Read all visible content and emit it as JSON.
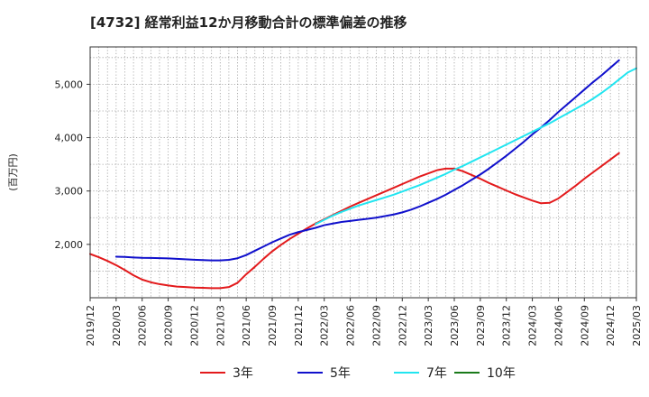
{
  "chart_data": {
    "type": "line",
    "title": "[4732]  経常利益12か月移動合計の標準偏差の推移",
    "ylabel": "(百万円)",
    "xlabel": "",
    "ylim": [
      1000,
      5700
    ],
    "yticks": [
      2000,
      3000,
      4000,
      5000
    ],
    "ytick_labels": [
      "2,000",
      "3,000",
      "4,000",
      "5,000"
    ],
    "xticks": [
      "2019/12",
      "2020/03",
      "2020/06",
      "2020/09",
      "2020/12",
      "2021/03",
      "2021/06",
      "2021/09",
      "2021/12",
      "2022/03",
      "2022/06",
      "2022/09",
      "2022/12",
      "2023/03",
      "2023/06",
      "2023/09",
      "2023/12",
      "2024/03",
      "2024/06",
      "2024/09",
      "2024/12",
      "2025/03"
    ],
    "grid": true,
    "legend_position": "bottom",
    "series": [
      {
        "name": "3年",
        "color": "#e31a1c",
        "points": [
          [
            "2019/12",
            1820
          ],
          [
            "2020/01",
            1760
          ],
          [
            "2020/02",
            1690
          ],
          [
            "2020/03",
            1610
          ],
          [
            "2020/04",
            1520
          ],
          [
            "2020/05",
            1420
          ],
          [
            "2020/06",
            1340
          ],
          [
            "2020/07",
            1290
          ],
          [
            "2020/08",
            1255
          ],
          [
            "2020/09",
            1230
          ],
          [
            "2020/10",
            1210
          ],
          [
            "2020/11",
            1200
          ],
          [
            "2020/12",
            1190
          ],
          [
            "2021/01",
            1185
          ],
          [
            "2021/02",
            1180
          ],
          [
            "2021/03",
            1180
          ],
          [
            "2021/04",
            1200
          ],
          [
            "2021/05",
            1280
          ],
          [
            "2021/06",
            1440
          ],
          [
            "2021/07",
            1580
          ],
          [
            "2021/08",
            1730
          ],
          [
            "2021/09",
            1870
          ],
          [
            "2021/10",
            1990
          ],
          [
            "2021/11",
            2100
          ],
          [
            "2021/12",
            2200
          ],
          [
            "2022/01",
            2300
          ],
          [
            "2022/02",
            2390
          ],
          [
            "2022/03",
            2470
          ],
          [
            "2022/04",
            2550
          ],
          [
            "2022/05",
            2630
          ],
          [
            "2022/06",
            2710
          ],
          [
            "2022/07",
            2780
          ],
          [
            "2022/08",
            2850
          ],
          [
            "2022/09",
            2920
          ],
          [
            "2022/10",
            2990
          ],
          [
            "2022/11",
            3060
          ],
          [
            "2022/12",
            3130
          ],
          [
            "2023/01",
            3200
          ],
          [
            "2023/02",
            3270
          ],
          [
            "2023/03",
            3330
          ],
          [
            "2023/04",
            3390
          ],
          [
            "2023/05",
            3420
          ],
          [
            "2023/06",
            3420
          ],
          [
            "2023/07",
            3370
          ],
          [
            "2023/08",
            3300
          ],
          [
            "2023/09",
            3230
          ],
          [
            "2023/10",
            3150
          ],
          [
            "2023/11",
            3080
          ],
          [
            "2023/12",
            3010
          ],
          [
            "2024/01",
            2940
          ],
          [
            "2024/02",
            2880
          ],
          [
            "2024/03",
            2820
          ],
          [
            "2024/04",
            2770
          ],
          [
            "2024/05",
            2780
          ],
          [
            "2024/06",
            2860
          ],
          [
            "2024/07",
            2980
          ],
          [
            "2024/08",
            3100
          ],
          [
            "2024/09",
            3230
          ],
          [
            "2024/10",
            3350
          ],
          [
            "2024/11",
            3470
          ],
          [
            "2024/12",
            3590
          ],
          [
            "2025/01",
            3710
          ]
        ]
      },
      {
        "name": "5年",
        "color": "#1010cc",
        "points": [
          [
            "2020/03",
            1770
          ],
          [
            "2020/04",
            1765
          ],
          [
            "2020/05",
            1755
          ],
          [
            "2020/06",
            1748
          ],
          [
            "2020/07",
            1745
          ],
          [
            "2020/08",
            1742
          ],
          [
            "2020/09",
            1738
          ],
          [
            "2020/10",
            1730
          ],
          [
            "2020/11",
            1720
          ],
          [
            "2020/12",
            1712
          ],
          [
            "2021/01",
            1705
          ],
          [
            "2021/02",
            1700
          ],
          [
            "2021/03",
            1700
          ],
          [
            "2021/04",
            1710
          ],
          [
            "2021/05",
            1740
          ],
          [
            "2021/06",
            1800
          ],
          [
            "2021/07",
            1880
          ],
          [
            "2021/08",
            1960
          ],
          [
            "2021/09",
            2040
          ],
          [
            "2021/10",
            2110
          ],
          [
            "2021/11",
            2180
          ],
          [
            "2021/12",
            2230
          ],
          [
            "2022/01",
            2270
          ],
          [
            "2022/02",
            2310
          ],
          [
            "2022/03",
            2360
          ],
          [
            "2022/04",
            2390
          ],
          [
            "2022/05",
            2420
          ],
          [
            "2022/06",
            2440
          ],
          [
            "2022/07",
            2460
          ],
          [
            "2022/08",
            2480
          ],
          [
            "2022/09",
            2500
          ],
          [
            "2022/10",
            2530
          ],
          [
            "2022/11",
            2560
          ],
          [
            "2022/12",
            2600
          ],
          [
            "2023/01",
            2650
          ],
          [
            "2023/02",
            2710
          ],
          [
            "2023/03",
            2780
          ],
          [
            "2023/04",
            2850
          ],
          [
            "2023/05",
            2930
          ],
          [
            "2023/06",
            3020
          ],
          [
            "2023/07",
            3110
          ],
          [
            "2023/08",
            3210
          ],
          [
            "2023/09",
            3310
          ],
          [
            "2023/10",
            3420
          ],
          [
            "2023/11",
            3540
          ],
          [
            "2023/12",
            3660
          ],
          [
            "2024/01",
            3790
          ],
          [
            "2024/02",
            3920
          ],
          [
            "2024/03",
            4060
          ],
          [
            "2024/04",
            4190
          ],
          [
            "2024/05",
            4330
          ],
          [
            "2024/06",
            4480
          ],
          [
            "2024/07",
            4620
          ],
          [
            "2024/08",
            4760
          ],
          [
            "2024/09",
            4900
          ],
          [
            "2024/10",
            5040
          ],
          [
            "2024/11",
            5170
          ],
          [
            "2024/12",
            5310
          ],
          [
            "2025/01",
            5450
          ]
        ]
      },
      {
        "name": "7年",
        "color": "#22e5f0",
        "points": [
          [
            "2022/02",
            2380
          ],
          [
            "2022/03",
            2460
          ],
          [
            "2022/04",
            2540
          ],
          [
            "2022/05",
            2610
          ],
          [
            "2022/06",
            2670
          ],
          [
            "2022/07",
            2730
          ],
          [
            "2022/08",
            2780
          ],
          [
            "2022/09",
            2830
          ],
          [
            "2022/10",
            2880
          ],
          [
            "2022/11",
            2930
          ],
          [
            "2022/12",
            2990
          ],
          [
            "2023/01",
            3050
          ],
          [
            "2023/02",
            3110
          ],
          [
            "2023/03",
            3180
          ],
          [
            "2023/04",
            3250
          ],
          [
            "2023/05",
            3320
          ],
          [
            "2023/06",
            3400
          ],
          [
            "2023/07",
            3470
          ],
          [
            "2023/08",
            3550
          ],
          [
            "2023/09",
            3630
          ],
          [
            "2023/10",
            3710
          ],
          [
            "2023/11",
            3790
          ],
          [
            "2023/12",
            3870
          ],
          [
            "2024/01",
            3950
          ],
          [
            "2024/02",
            4030
          ],
          [
            "2024/03",
            4110
          ],
          [
            "2024/04",
            4190
          ],
          [
            "2024/05",
            4270
          ],
          [
            "2024/06",
            4360
          ],
          [
            "2024/07",
            4450
          ],
          [
            "2024/08",
            4540
          ],
          [
            "2024/09",
            4630
          ],
          [
            "2024/10",
            4730
          ],
          [
            "2024/11",
            4840
          ],
          [
            "2024/12",
            4960
          ],
          [
            "2025/01",
            5090
          ],
          [
            "2025/02",
            5220
          ],
          [
            "2025/03",
            5300
          ]
        ]
      },
      {
        "name": "10年",
        "color": "#1a7a1a",
        "points": []
      }
    ]
  }
}
